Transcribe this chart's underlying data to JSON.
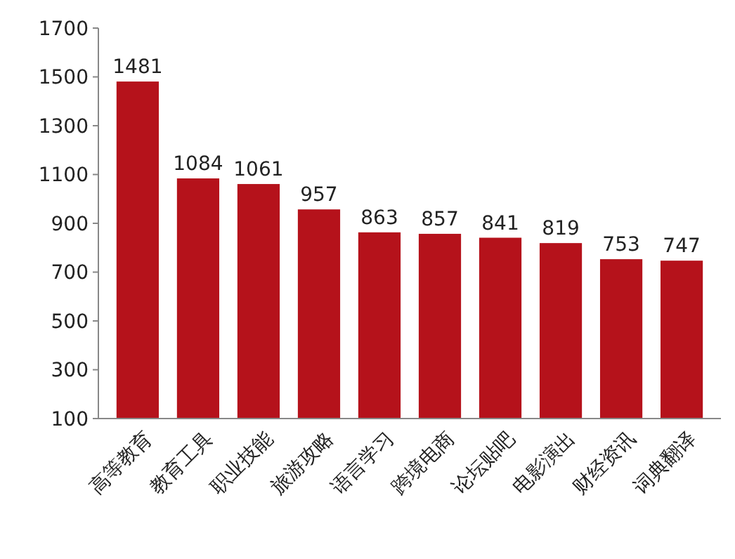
{
  "chart_data": {
    "type": "bar",
    "categories": [
      "高等教育",
      "教育工具",
      "职业技能",
      "旅游攻略",
      "语言学习",
      "跨境电商",
      "论坛贴吧",
      "电影演出",
      "财经资讯",
      "词典翻译"
    ],
    "values": [
      1481,
      1084,
      1061,
      957,
      863,
      857,
      841,
      819,
      753,
      747
    ],
    "color": "#b5121b",
    "ylim": [
      100,
      1700
    ],
    "yticks": [
      100,
      300,
      500,
      700,
      900,
      1100,
      1300,
      1500,
      1700
    ],
    "grid": false,
    "data_labels": true
  }
}
